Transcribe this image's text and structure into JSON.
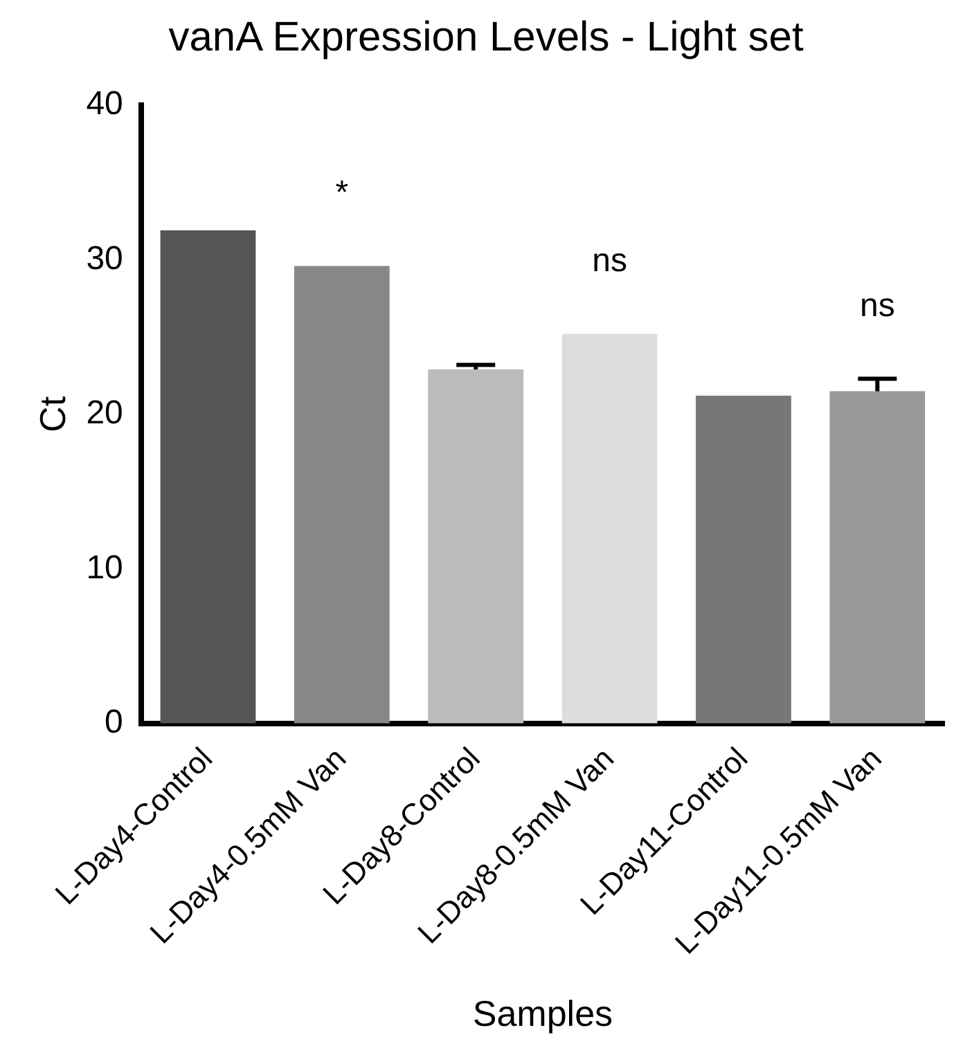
{
  "chart_data": {
    "type": "bar",
    "title": "vanA Expression Levels - Light set",
    "xlabel": "Samples",
    "ylabel": "Ct",
    "categories": [
      "L-Day4-Control",
      "L-Day4-0.5mM Van",
      "L-Day8-Control",
      "L-Day8-0.5mM Van",
      "L-Day11-Control",
      "L-Day11-0.5mM Van"
    ],
    "values": [
      31.9,
      29.6,
      22.9,
      25.2,
      21.2,
      21.5
    ],
    "errors": [
      null,
      null,
      0.3,
      null,
      null,
      0.8
    ],
    "colors": [
      "#555555",
      "#888888",
      "#bbbbbb",
      "#dddddd",
      "#777777",
      "#999999"
    ],
    "ylim": [
      0,
      40
    ],
    "yticks": [
      0,
      10,
      20,
      30,
      40
    ],
    "grid": false,
    "annotations": [
      {
        "text": "*",
        "x": "L-Day4-0.5mM Van",
        "y": 29.6
      },
      {
        "text": "ns",
        "x": "L-Day8-0.5mM Van",
        "y": 25.2
      },
      {
        "text": "ns",
        "x": "L-Day11-0.5mM Van",
        "y": 22.3
      }
    ]
  }
}
